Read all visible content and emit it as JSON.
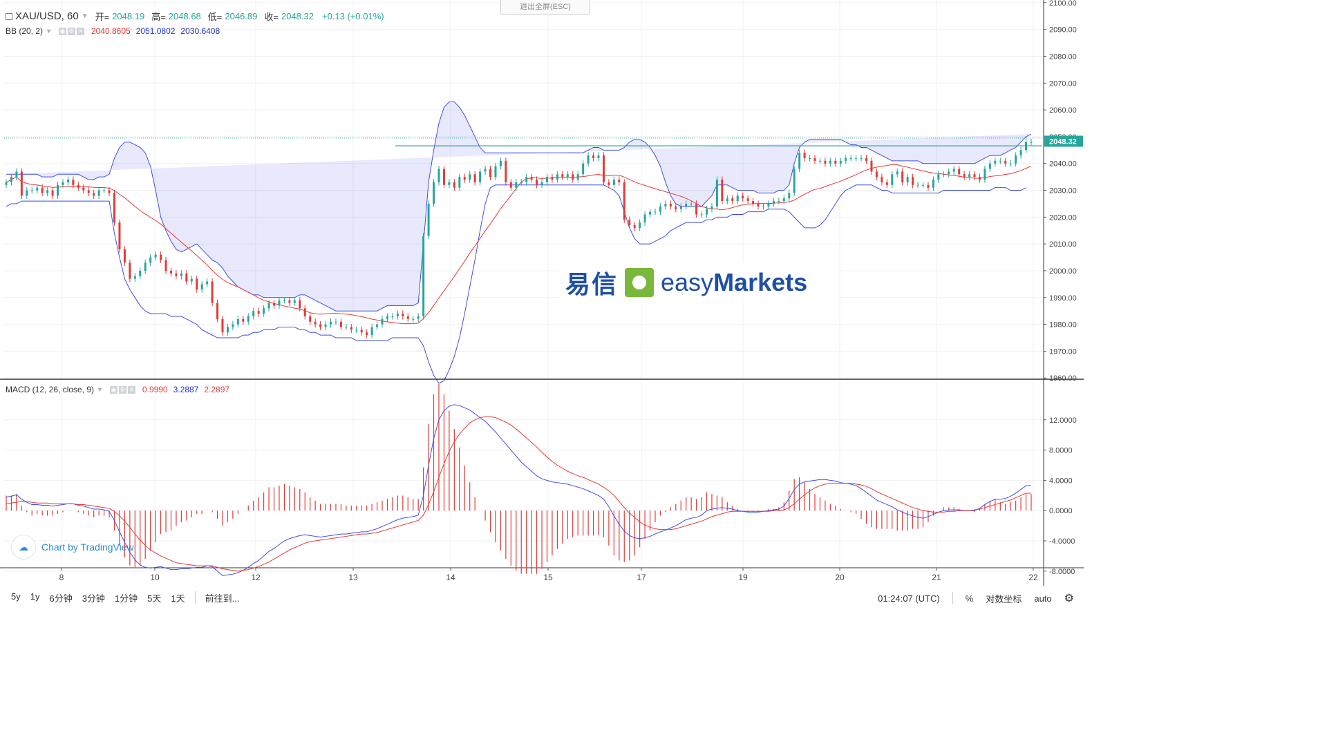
{
  "legend": {
    "symbol": "XAU/USD, 60",
    "open_label": "开=",
    "open": "2048.19",
    "high_label": "高=",
    "high": "2048.68",
    "low_label": "低=",
    "low": "2046.89",
    "close_label": "收=",
    "close": "2048.32",
    "change": "+0.13 (+0.01%)"
  },
  "bb": {
    "label": "BB (20, 2)",
    "basis": "2040.8605",
    "upper": "2051.0802",
    "lower": "2030.6408"
  },
  "macd": {
    "label": "MACD (12, 26, close, 9)",
    "hist": "0.9990",
    "macd": "3.2887",
    "signal": "2.2897"
  },
  "esc_button": "退出全屏(ESC)",
  "price_tag": "2048.32",
  "logo": {
    "cn": "易信",
    "en_a": "easy",
    "en_b": "Markets"
  },
  "tv_brand": "Chart by TradingView",
  "bottom": {
    "ranges": [
      "5y",
      "1y",
      "6分钟",
      "3分钟",
      "1分钟",
      "5天",
      "1天"
    ],
    "goto": "前往到...",
    "time": "01:24:07 (UTC)",
    "percent": "%",
    "log": "对数坐标",
    "auto": "auto"
  },
  "colors": {
    "up": "#26a69a",
    "down": "#e53935",
    "band": "#3f4de6",
    "basis": "#e53935",
    "macd": "#3f4de6",
    "signal": "#e53935",
    "price_line": "#26a69a"
  },
  "chart_data": {
    "type": "line",
    "title": "",
    "x_ticks": [
      "8",
      "10",
      "12",
      "13",
      "14",
      "15",
      "17",
      "19",
      "20",
      "21",
      "22"
    ],
    "price_axis": {
      "ylim": [
        1960,
        2100
      ],
      "ticks": [
        "2100.00",
        "2090.00",
        "2080.00",
        "2070.00",
        "2060.00",
        "2050.00",
        "2040.00",
        "2030.00",
        "2020.00",
        "2010.00",
        "2000.00",
        "1990.00",
        "1980.00",
        "1970.00",
        "1960.00"
      ]
    },
    "macd_axis": {
      "ylim": [
        -9,
        15
      ],
      "ticks": [
        "12.0000",
        "8.0000",
        "4.0000",
        "0.0000",
        "-4.0000",
        "-8.0000"
      ]
    },
    "price_close": [
      2033,
      2035,
      2037,
      2028,
      2030,
      2030,
      2031,
      2029,
      2030,
      2028,
      2032,
      2033,
      2034,
      2032,
      2031,
      2030,
      2029,
      2028,
      2030,
      2030,
      2029,
      2018,
      2008,
      2003,
      1997,
      1998,
      2000,
      2003,
      2005,
      2006,
      2004,
      2000,
      1999,
      1998,
      1999,
      1996,
      1997,
      1993,
      1995,
      1996,
      1988,
      1982,
      1977,
      1979,
      1980,
      1982,
      1981,
      1983,
      1985,
      1984,
      1986,
      1988,
      1987,
      1989,
      1989,
      1988,
      1989,
      1986,
      1983,
      1981,
      1980,
      1979,
      1980,
      1981,
      1981,
      1979,
      1979,
      1978,
      1978,
      1977,
      1976,
      1979,
      1980,
      1982,
      1983,
      1983,
      1984,
      1983,
      1982,
      1982,
      1983,
      2013,
      2025,
      2033,
      2038,
      2032,
      2033,
      2031,
      2035,
      2034,
      2036,
      2033,
      2037,
      2038,
      2035,
      2039,
      2041,
      2033,
      2031,
      2033,
      2033,
      2035,
      2034,
      2032,
      2033,
      2035,
      2034,
      2036,
      2035,
      2036,
      2034,
      2036,
      2040,
      2043,
      2042,
      2043,
      2033,
      2032,
      2034,
      2033,
      2019,
      2017,
      2016,
      2018,
      2021,
      2022,
      2022,
      2024,
      2025,
      2024,
      2023,
      2024,
      2025,
      2025,
      2021,
      2021,
      2023,
      2024,
      2034,
      2026,
      2027,
      2026,
      2028,
      2027,
      2026,
      2025,
      2024,
      2024,
      2025,
      2026,
      2026,
      2027,
      2029,
      2038,
      2044,
      2042,
      2042,
      2041,
      2041,
      2040,
      2041,
      2040,
      2041,
      2042,
      2042,
      2042,
      2042,
      2041,
      2037,
      2035,
      2033,
      2032,
      2036,
      2037,
      2033,
      2035,
      2032,
      2032,
      2032,
      2031,
      2034,
      2036,
      2036,
      2037,
      2038,
      2036,
      2035,
      2036,
      2035,
      2034,
      2038,
      2040,
      2041,
      2041,
      2040,
      2040,
      2043,
      2045,
      2048,
      2048
    ],
    "bb_upper": [
      2036,
      2036,
      2036,
      2036,
      2036,
      2036,
      2036,
      2035,
      2035,
      2035,
      2036,
      2036,
      2036,
      2036,
      2036,
      2035,
      2034,
      2034,
      2035,
      2035,
      2036,
      2042,
      2046,
      2048,
      2048,
      2047,
      2046,
      2044,
      2039,
      2030,
      2020,
      2015,
      2011,
      2008,
      2007,
      2008,
      2009,
      2010,
      2008,
      2006,
      2004,
      2003,
      2001,
      1998,
      1996,
      1994,
      1993,
      1992,
      1991,
      1991,
      1990,
      1990,
      1990,
      1990,
      1990,
      1990,
      1990,
      1991,
      1991,
      1990,
      1989,
      1988,
      1987,
      1986,
      1985,
      1985,
      1985,
      1985,
      1985,
      1985,
      1985,
      1985,
      1985,
      1986,
      1987,
      1987,
      1987,
      1987,
      1987,
      1987,
      1988,
      2010,
      2033,
      2045,
      2055,
      2061,
      2063,
      2063,
      2061,
      2058,
      2054,
      2050,
      2046,
      2044,
      2044,
      2044,
      2044,
      2044,
      2044,
      2044,
      2044,
      2044,
      2044,
      2044,
      2044,
      2044,
      2044,
      2044,
      2044,
      2044,
      2044,
      2044,
      2044,
      2045,
      2046,
      2046,
      2045,
      2045,
      2045,
      2045,
      2046,
      2048,
      2049,
      2049,
      2048,
      2046,
      2043,
      2039,
      2033,
      2028,
      2025,
      2024,
      2024,
      2024,
      2024,
      2024,
      2026,
      2028,
      2032,
      2032,
      2032,
      2031,
      2030,
      2030,
      2030,
      2030,
      2029,
      2029,
      2029,
      2029,
      2030,
      2030,
      2032,
      2040,
      2046,
      2048,
      2049,
      2049,
      2049,
      2049,
      2049,
      2049,
      2049,
      2048,
      2047,
      2047,
      2046,
      2046,
      2045,
      2044,
      2043,
      2042,
      2041,
      2041,
      2041,
      2041,
      2041,
      2041,
      2040,
      2040,
      2040,
      2040,
      2040,
      2040,
      2040,
      2040,
      2040,
      2040,
      2040,
      2041,
      2042,
      2043,
      2043,
      2043,
      2044,
      2045,
      2046,
      2048,
      2050,
      2051
    ],
    "bb_lower": [
      2024,
      2025,
      2025,
      2026,
      2026,
      2026,
      2026,
      2026,
      2026,
      2026,
      2026,
      2026,
      2026,
      2026,
      2026,
      2026,
      2026,
      2026,
      2026,
      2026,
      2026,
      2014,
      2005,
      1997,
      1993,
      1990,
      1987,
      1985,
      1984,
      1984,
      1984,
      1984,
      1983,
      1983,
      1983,
      1982,
      1981,
      1980,
      1978,
      1977,
      1976,
      1975,
      1975,
      1975,
      1975,
      1975,
      1976,
      1976,
      1977,
      1977,
      1978,
      1978,
      1978,
      1979,
      1979,
      1979,
      1979,
      1978,
      1978,
      1977,
      1977,
      1976,
      1976,
      1976,
      1975,
      1975,
      1975,
      1975,
      1974,
      1974,
      1974,
      1974,
      1974,
      1974,
      1974,
      1975,
      1975,
      1975,
      1975,
      1975,
      1975,
      1972,
      1966,
      1961,
      1958,
      1959,
      1963,
      1968,
      1975,
      1984,
      1994,
      2004,
      2015,
      2025,
      2031,
      2032,
      2032,
      2032,
      2032,
      2032,
      2032,
      2032,
      2032,
      2032,
      2032,
      2032,
      2032,
      2032,
      2032,
      2032,
      2032,
      2032,
      2032,
      2032,
      2032,
      2032,
      2032,
      2031,
      2030,
      2028,
      2022,
      2016,
      2012,
      2010,
      2010,
      2010,
      2011,
      2012,
      2013,
      2015,
      2016,
      2017,
      2018,
      2018,
      2018,
      2018,
      2019,
      2019,
      2020,
      2020,
      2020,
      2021,
      2021,
      2021,
      2022,
      2022,
      2022,
      2022,
      2023,
      2023,
      2023,
      2023,
      2022,
      2020,
      2018,
      2016,
      2016,
      2016,
      2017,
      2019,
      2022,
      2025,
      2028,
      2030,
      2031,
      2032,
      2032,
      2032,
      2032,
      2031,
      2030,
      2030,
      2029,
      2029,
      2029,
      2029,
      2029,
      2029,
      2029,
      2029,
      2029,
      2029,
      2030,
      2030,
      2030,
      2030,
      2030,
      2030,
      2030,
      2030,
      2030,
      2030,
      2031,
      2031,
      2031,
      2030,
      2030,
      2030,
      2031
    ],
    "macd_line": [
      1.8,
      1.9,
      2.1,
      1.5,
      1.1,
      0.8,
      0.8,
      0.7,
      0.7,
      0.6,
      0.7,
      0.8,
      0.9,
      0.9,
      0.7,
      0.6,
      0.4,
      0.2,
      0.2,
      0.1,
      -0.1,
      -1.3,
      -2.8,
      -4.2,
      -5.5,
      -6.5,
      -7.2,
      -7.5,
      -7.6,
      -7.5,
      -7.4,
      -7.6,
      -7.8,
      -7.8,
      -7.7,
      -7.7,
      -7.6,
      -7.5,
      -7.5,
      -7.3,
      -7.4,
      -8.0,
      -8.6,
      -8.5,
      -8.4,
      -8.2,
      -7.9,
      -7.5,
      -7.0,
      -6.6,
      -6.0,
      -5.4,
      -5.0,
      -4.5,
      -4.0,
      -3.7,
      -3.5,
      -3.3,
      -3.2,
      -3.3,
      -3.4,
      -3.5,
      -3.4,
      -3.3,
      -3.2,
      -3.1,
      -3.1,
      -3.0,
      -2.9,
      -2.8,
      -2.8,
      -2.6,
      -2.4,
      -2.1,
      -1.8,
      -1.5,
      -1.2,
      -1.0,
      -0.9,
      -0.8,
      -0.6,
      2.0,
      6.0,
      9.5,
      12.0,
      13.2,
      13.8,
      14.0,
      13.9,
      13.6,
      13.3,
      12.8,
      12.3,
      11.8,
      11.1,
      10.4,
      9.6,
      8.8,
      8.0,
      7.2,
      6.4,
      5.8,
      5.2,
      4.6,
      4.2,
      4.0,
      3.8,
      3.7,
      3.6,
      3.5,
      3.3,
      3.1,
      2.9,
      2.6,
      2.3,
      2.0,
      1.5,
      0.5,
      -0.7,
      -1.8,
      -2.7,
      -3.3,
      -3.6,
      -3.7,
      -3.6,
      -3.4,
      -3.1,
      -2.8,
      -2.6,
      -2.3,
      -2.0,
      -1.6,
      -1.2,
      -1.0,
      -0.9,
      -0.6,
      0.0,
      0.2,
      0.3,
      0.4,
      0.3,
      0.2,
      0.0,
      -0.1,
      -0.2,
      -0.2,
      -0.2,
      -0.1,
      0.0,
      0.1,
      0.2,
      0.6,
      1.6,
      2.8,
      3.5,
      3.8,
      3.9,
      4.0,
      4.1,
      4.1,
      4.0,
      3.9,
      3.7,
      3.6,
      3.5,
      3.3,
      2.9,
      2.4,
      1.9,
      1.4,
      1.1,
      0.8,
      0.5,
      0.1,
      -0.2,
      -0.5,
      -0.7,
      -0.9,
      -1.0,
      -0.8,
      -0.5,
      -0.2,
      0.0,
      0.1,
      0.1,
      0.1,
      0.0,
      0.0,
      0.0,
      0.3,
      0.8,
      1.2,
      1.5,
      1.5,
      1.6,
      1.9,
      2.3,
      2.8,
      3.3,
      3.3
    ],
    "signal_line": [
      0.9,
      1.0,
      1.1,
      1.2,
      1.2,
      1.1,
      1.0,
      1.0,
      1.0,
      0.9,
      0.9,
      0.9,
      0.9,
      0.9,
      0.8,
      0.8,
      0.7,
      0.6,
      0.5,
      0.4,
      0.3,
      -0.1,
      -0.7,
      -1.4,
      -2.2,
      -3.1,
      -3.9,
      -4.6,
      -5.2,
      -5.6,
      -6.0,
      -6.3,
      -6.6,
      -6.9,
      -7.0,
      -7.1,
      -7.2,
      -7.3,
      -7.3,
      -7.3,
      -7.3,
      -7.5,
      -7.7,
      -7.8,
      -7.9,
      -8.0,
      -7.9,
      -7.8,
      -7.6,
      -7.4,
      -7.1,
      -6.8,
      -6.4,
      -6.0,
      -5.6,
      -5.2,
      -4.9,
      -4.6,
      -4.3,
      -4.1,
      -4.0,
      -3.9,
      -3.8,
      -3.7,
      -3.6,
      -3.5,
      -3.4,
      -3.3,
      -3.2,
      -3.1,
      -3.1,
      -3.0,
      -2.9,
      -2.7,
      -2.5,
      -2.3,
      -2.1,
      -1.9,
      -1.7,
      -1.5,
      -1.3,
      -0.6,
      0.8,
      2.5,
      4.4,
      6.2,
      7.8,
      9.1,
      10.1,
      10.9,
      11.6,
      12.0,
      12.3,
      12.4,
      12.4,
      12.3,
      12.0,
      11.7,
      11.3,
      10.8,
      10.2,
      9.6,
      9.0,
      8.4,
      7.7,
      7.1,
      6.5,
      6.0,
      5.6,
      5.2,
      4.9,
      4.6,
      4.4,
      4.1,
      3.8,
      3.5,
      3.1,
      2.6,
      2.0,
      1.2,
      0.4,
      -0.3,
      -0.9,
      -1.5,
      -1.9,
      -2.2,
      -2.4,
      -2.5,
      -2.5,
      -2.5,
      -2.4,
      -2.2,
      -2.0,
      -1.8,
      -1.6,
      -1.4,
      -1.1,
      -0.8,
      -0.6,
      -0.4,
      -0.2,
      -0.1,
      -0.1,
      -0.1,
      -0.1,
      -0.1,
      -0.1,
      -0.1,
      -0.1,
      0.0,
      0.0,
      0.1,
      0.4,
      0.9,
      1.5,
      2.1,
      2.6,
      3.0,
      3.3,
      3.5,
      3.6,
      3.6,
      3.6,
      3.6,
      3.6,
      3.5,
      3.4,
      3.2,
      2.9,
      2.5,
      2.2,
      1.9,
      1.6,
      1.3,
      1.0,
      0.7,
      0.4,
      0.2,
      0.0,
      -0.1,
      -0.2,
      -0.2,
      -0.2,
      -0.1,
      -0.1,
      0.0,
      0.0,
      0.0,
      0.1,
      0.2,
      0.4,
      0.6,
      0.8,
      1.0,
      1.2,
      1.4,
      1.7,
      2.0,
      2.3,
      2.3
    ]
  }
}
